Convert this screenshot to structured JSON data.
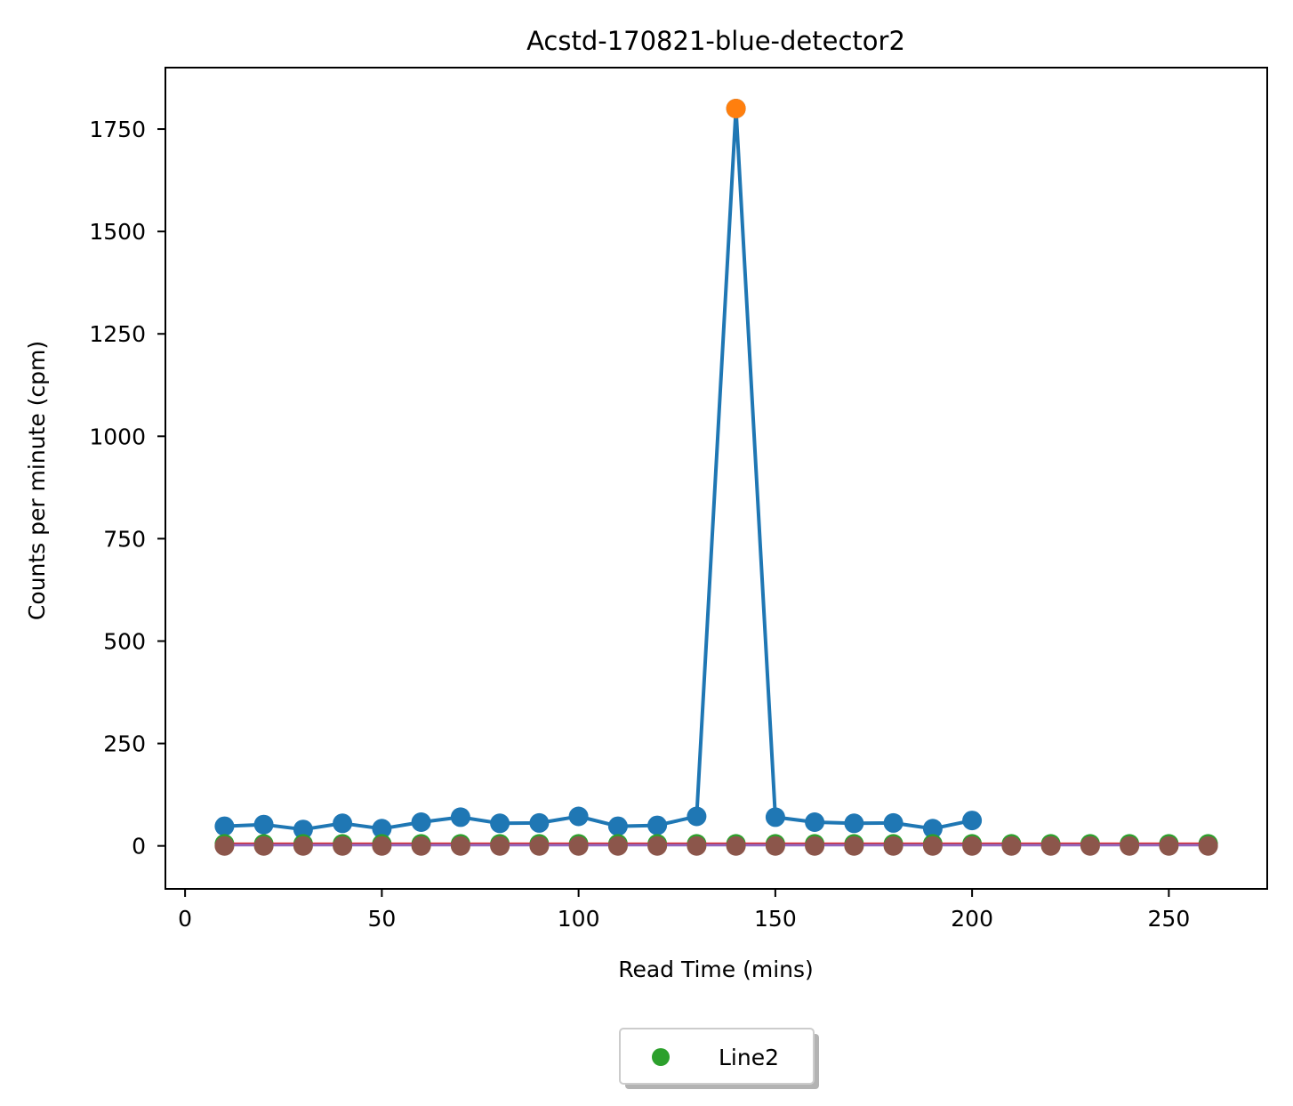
{
  "chart_data": {
    "type": "line",
    "title": "Acstd-170821-blue-detector2",
    "xlabel": "Read Time (mins)",
    "ylabel": "Counts per minute (cpm)",
    "xlim": [
      -5,
      275
    ],
    "ylim": [
      -105,
      1900
    ],
    "x_ticks": [
      "0",
      "50",
      "100",
      "150",
      "200",
      "250"
    ],
    "y_ticks": [
      "0",
      "250",
      "500",
      "750",
      "1000",
      "1250",
      "1500",
      "1750"
    ],
    "x_tick_values": [
      0,
      50,
      100,
      150,
      200,
      250
    ],
    "y_tick_values": [
      0,
      250,
      500,
      750,
      1000,
      1250,
      1500,
      1750
    ],
    "legend": {
      "placement": "below-center",
      "entries": [
        {
          "label": "Line2",
          "color": "#2ca02c",
          "marker": "circle"
        }
      ]
    },
    "series": [
      {
        "color": "#1f77b4",
        "style": "line-markers",
        "points": [
          [
            10,
            48
          ],
          [
            20,
            52
          ],
          [
            30,
            40
          ],
          [
            40,
            55
          ],
          [
            50,
            42
          ],
          [
            60,
            58
          ],
          [
            70,
            70
          ],
          [
            80,
            55
          ],
          [
            90,
            56
          ],
          [
            100,
            72
          ],
          [
            110,
            48
          ],
          [
            120,
            50
          ],
          [
            130,
            72
          ],
          [
            140,
            1800
          ],
          [
            150,
            70
          ],
          [
            160,
            58
          ],
          [
            170,
            55
          ],
          [
            180,
            56
          ],
          [
            190,
            42
          ],
          [
            200,
            62
          ]
        ]
      },
      {
        "color": "#ff7f0e",
        "style": "markers",
        "points": [
          [
            140,
            1800
          ]
        ]
      },
      {
        "name": "Line2",
        "color": "#2ca02c",
        "style": "markers",
        "points": [
          [
            10,
            5
          ],
          [
            20,
            5
          ],
          [
            30,
            5
          ],
          [
            40,
            5
          ],
          [
            50,
            5
          ],
          [
            60,
            5
          ],
          [
            70,
            5
          ],
          [
            80,
            5
          ],
          [
            90,
            5
          ],
          [
            100,
            5
          ],
          [
            110,
            5
          ],
          [
            120,
            5
          ],
          [
            130,
            5
          ],
          [
            140,
            5
          ],
          [
            150,
            5
          ],
          [
            160,
            5
          ],
          [
            170,
            5
          ],
          [
            180,
            5
          ],
          [
            190,
            5
          ],
          [
            200,
            5
          ],
          [
            210,
            5
          ],
          [
            220,
            5
          ],
          [
            230,
            5
          ],
          [
            240,
            5
          ],
          [
            250,
            5
          ],
          [
            260,
            5
          ]
        ]
      },
      {
        "color": "#d62728",
        "style": "line",
        "points": [
          [
            10,
            5
          ],
          [
            260,
            5
          ]
        ]
      },
      {
        "color": "#9467bd",
        "style": "line",
        "points": [
          [
            10,
            2
          ],
          [
            260,
            2
          ]
        ]
      },
      {
        "color": "#8c564b",
        "style": "markers",
        "points": [
          [
            10,
            0
          ],
          [
            20,
            0
          ],
          [
            30,
            0
          ],
          [
            40,
            0
          ],
          [
            50,
            0
          ],
          [
            60,
            0
          ],
          [
            70,
            0
          ],
          [
            80,
            0
          ],
          [
            90,
            0
          ],
          [
            100,
            0
          ],
          [
            110,
            0
          ],
          [
            120,
            0
          ],
          [
            130,
            0
          ],
          [
            140,
            0
          ],
          [
            150,
            0
          ],
          [
            160,
            0
          ],
          [
            170,
            0
          ],
          [
            180,
            0
          ],
          [
            190,
            0
          ],
          [
            200,
            0
          ],
          [
            210,
            0
          ],
          [
            220,
            0
          ],
          [
            230,
            0
          ],
          [
            240,
            0
          ],
          [
            250,
            0
          ],
          [
            260,
            0
          ]
        ]
      }
    ]
  }
}
